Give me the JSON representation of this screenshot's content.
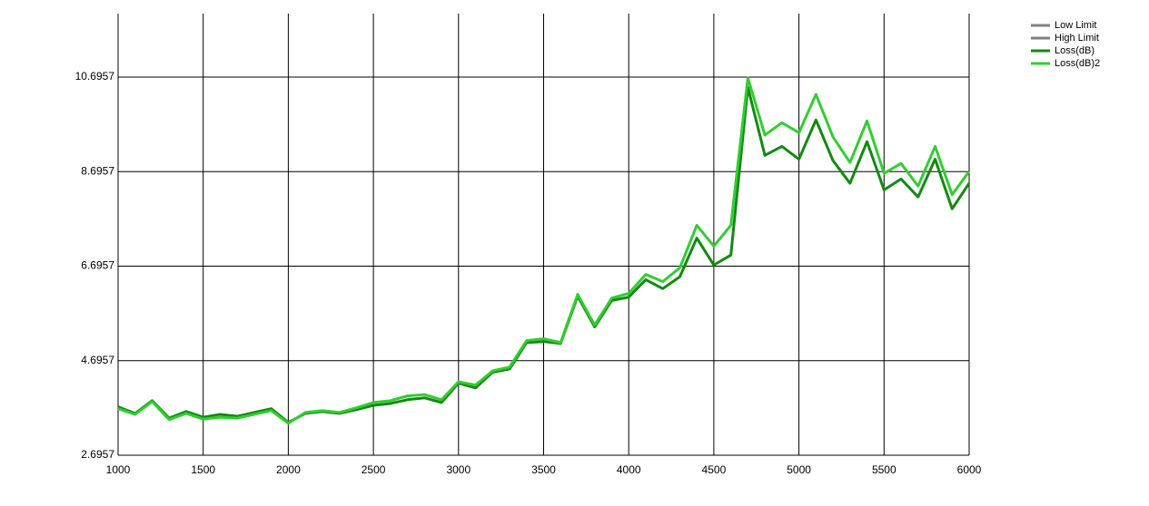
{
  "chart_data": {
    "type": "line",
    "x": [
      1000,
      1100,
      1200,
      1300,
      1400,
      1500,
      1600,
      1700,
      1800,
      1900,
      2000,
      2100,
      2200,
      2300,
      2400,
      2500,
      2600,
      2700,
      2800,
      2900,
      3000,
      3100,
      3200,
      3300,
      3400,
      3500,
      3600,
      3700,
      3800,
      3900,
      4000,
      4100,
      4200,
      4300,
      4400,
      4500,
      4600,
      4700,
      4800,
      4900,
      5000,
      5100,
      5200,
      5300,
      5400,
      5500,
      5600,
      5700,
      5800,
      5900,
      6000
    ],
    "series": [
      {
        "name": "Low Limit",
        "color": "#808080",
        "values": [
          null,
          null,
          null,
          null,
          null,
          null,
          null,
          null,
          null,
          null,
          null,
          null,
          null,
          null,
          null,
          null,
          null,
          null,
          null,
          null,
          null,
          null,
          null,
          null,
          null,
          null,
          null,
          null,
          null,
          null,
          null,
          null,
          null,
          null,
          null,
          null,
          null,
          null,
          null,
          null,
          null,
          null,
          null,
          null,
          null,
          null,
          null,
          null,
          null,
          null,
          null
        ]
      },
      {
        "name": "High Limit",
        "color": "#808080",
        "values": [
          null,
          null,
          null,
          null,
          null,
          null,
          null,
          null,
          null,
          null,
          null,
          null,
          null,
          null,
          null,
          null,
          null,
          null,
          null,
          null,
          null,
          null,
          null,
          null,
          null,
          null,
          null,
          null,
          null,
          null,
          null,
          null,
          null,
          null,
          null,
          null,
          null,
          null,
          null,
          null,
          null,
          null,
          null,
          null,
          null,
          null,
          null,
          null,
          null,
          null,
          null
        ]
      },
      {
        "name": "Loss(dB)",
        "color": "#128a12",
        "values": [
          3.72,
          3.58,
          3.85,
          3.48,
          3.62,
          3.5,
          3.56,
          3.52,
          3.6,
          3.68,
          3.39,
          3.58,
          3.62,
          3.58,
          3.66,
          3.75,
          3.79,
          3.87,
          3.91,
          3.81,
          4.22,
          4.12,
          4.45,
          4.52,
          5.08,
          5.1,
          5.06,
          6.06,
          5.41,
          5.97,
          6.04,
          6.41,
          6.22,
          6.47,
          7.29,
          6.72,
          6.93,
          10.48,
          9.04,
          9.23,
          8.96,
          9.79,
          8.93,
          8.45,
          9.33,
          8.31,
          8.54,
          8.16,
          8.96,
          7.91,
          8.45
        ]
      },
      {
        "name": "Loss(dB)2",
        "color": "#33cc33",
        "values": [
          3.68,
          3.56,
          3.83,
          3.45,
          3.58,
          3.46,
          3.5,
          3.48,
          3.56,
          3.64,
          3.37,
          3.6,
          3.64,
          3.6,
          3.7,
          3.81,
          3.85,
          3.95,
          3.98,
          3.87,
          4.25,
          4.18,
          4.48,
          4.56,
          5.12,
          5.16,
          5.08,
          6.1,
          5.45,
          6.02,
          6.12,
          6.52,
          6.37,
          6.66,
          7.56,
          7.12,
          7.56,
          10.68,
          9.47,
          9.73,
          9.52,
          10.33,
          9.43,
          8.89,
          9.77,
          8.66,
          8.87,
          8.39,
          9.23,
          8.21,
          8.7
        ]
      }
    ],
    "xlim": [
      1000,
      6000
    ],
    "xticks": [
      1000,
      1500,
      2000,
      2500,
      3000,
      3500,
      4000,
      4500,
      5000,
      5500,
      6000
    ],
    "ylim": [
      2.6957,
      12.04
    ],
    "yticks": [
      2.6957,
      4.6957,
      6.6957,
      8.6957,
      10.6957
    ],
    "grid": true,
    "legend": "top-right"
  }
}
